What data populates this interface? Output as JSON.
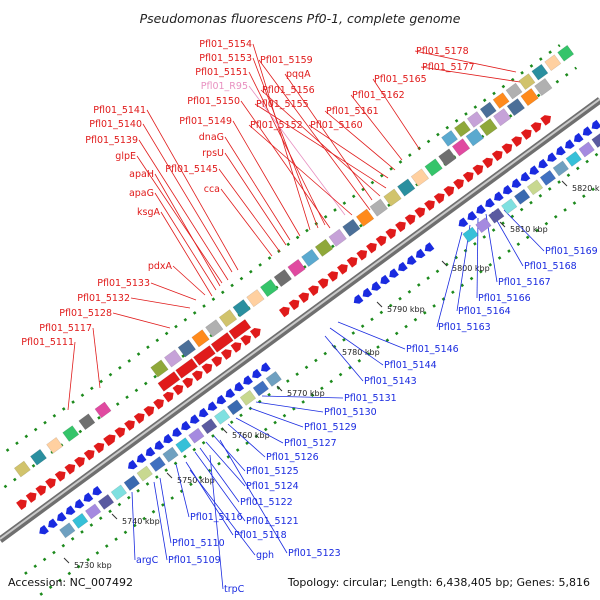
{
  "title": "Pseudomonas fluorescens Pf0-1, complete genome",
  "footer": {
    "accession": "Accession: NC_007492",
    "summary": "Topology: circular; Length: 6,438,405 bp; Genes: 5,816"
  },
  "colors": {
    "forward": "#e01b1b",
    "reverse": "#1a2be0",
    "pink_label": "#e890c0",
    "backbone": "#8a8a8a",
    "dots": "#1d8a1d"
  },
  "ticks": [
    "5730 kbp",
    "5740 kbp",
    "5750 kbp",
    "5760 kbp",
    "5770 kbp",
    "5780 kbp",
    "5790 kbp",
    "5800 kbp",
    "5810 kbp",
    "5820 kbp"
  ],
  "red_labels": [
    "Pfl01_5154",
    "Pfl01_5153",
    "Pfl01_5151",
    "Pfl01_R95",
    "Pfl01_5150",
    "Pfl01_5149",
    "dnaG",
    "rpsU",
    "Pfl01_5145",
    "cca",
    "Pfl01_5141",
    "Pfl01_5140",
    "Pfl01_5139",
    "glpE",
    "apaH",
    "apaG",
    "ksgA",
    "pdxA",
    "Pfl01_5133",
    "Pfl01_5132",
    "Pfl01_5128",
    "Pfl01_5117",
    "Pfl01_5111",
    "Pfl01_5159",
    "pqqA",
    "Pfl01_5156",
    "Pfl01_5155",
    "Pfl01_5152",
    "Pfl01_5161",
    "Pfl01_5160",
    "Pfl01_5162",
    "Pfl01_5165",
    "Pfl01_5177",
    "Pfl01_5178"
  ],
  "blue_labels": [
    "Pfl01_5169",
    "Pfl01_5168",
    "Pfl01_5167",
    "Pfl01_5166",
    "Pfl01_5164",
    "Pfl01_5163",
    "Pfl01_5146",
    "Pfl01_5144",
    "Pfl01_5143",
    "Pfl01_5131",
    "Pfl01_5130",
    "Pfl01_5129",
    "Pfl01_5127",
    "Pfl01_5126",
    "Pfl01_5125",
    "Pfl01_5124",
    "Pfl01_5122",
    "Pfl01_5121",
    "Pfl01_5116",
    "Pfl01_5118",
    "Pfl01_5123",
    "gph",
    "Pfl01_5110",
    "Pfl01_5109",
    "argC",
    "trpC"
  ]
}
